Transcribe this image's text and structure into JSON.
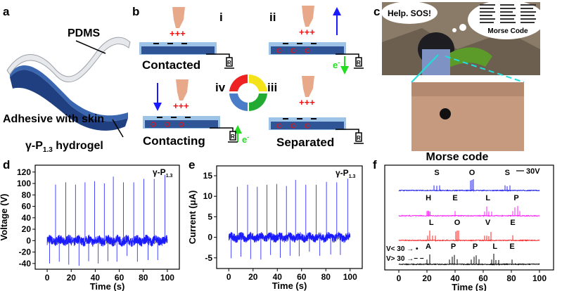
{
  "panels": {
    "a": {
      "label": "a",
      "pdms": "PDMS",
      "adhesive": "Adhesive with skin",
      "hydrogel_main": "γ-P",
      "hydrogel_sub": "1.3",
      "hydrogel_tail": " hydrogel"
    },
    "b": {
      "label": "b",
      "step_i": "i",
      "step_ii": "ii",
      "step_iii": "iii",
      "step_iv": "iv",
      "contacted": "Contacted",
      "contacting": "Contacting",
      "separated": "Separated",
      "charge_plus": "+++",
      "charge_minus": "−",
      "electron": "e",
      "electron_sup": "-",
      "resistor": "R"
    },
    "c": {
      "label": "c",
      "speech": "Help. SOS!",
      "morse_title": "Morse Code"
    },
    "d": {
      "label": "d"
    },
    "e": {
      "label": "e"
    },
    "f": {
      "label": "f",
      "title": "Morse code"
    }
  },
  "colors": {
    "trace": "#1a1aff",
    "sos": "#2222ee",
    "help": "#ff22ff",
    "love": "#ff2222",
    "apple": "#000000",
    "slab": "#2f5597",
    "slab_edge": "#9dc3e6"
  },
  "chart_data": [
    {
      "type": "line",
      "panel": "d",
      "xlabel": "Time (s)",
      "ylabel": "Voltage (V)",
      "annotation_main": "γ-P",
      "annotation_sub": "1.3",
      "xlim": [
        -10,
        110
      ],
      "ylim": [
        -50,
        132
      ],
      "xticks": [
        0,
        20,
        40,
        60,
        80,
        100
      ],
      "yticks": [
        -40,
        -20,
        0,
        20,
        40,
        60,
        80,
        100,
        120
      ],
      "baseline_noise": 8,
      "positive_peaks": {
        "t": [
          7,
          15.5,
          23.5,
          31.5,
          39.5,
          47.5,
          55,
          63.5,
          72,
          80.5,
          89,
          98
        ],
        "v": [
          98,
          102,
          98,
          102,
          104,
          100,
          112,
          102,
          102,
          108,
          108,
          115
        ]
      },
      "negative_peaks": {
        "t": [
          2,
          10,
          18,
          26.5,
          34.5,
          42.5,
          50.5,
          58,
          66.5,
          75,
          84,
          92
        ],
        "v": [
          -40,
          -37,
          -42,
          -44,
          -36,
          -40,
          -36,
          -37,
          -27,
          -37,
          -34,
          -34
        ]
      }
    },
    {
      "type": "line",
      "panel": "e",
      "xlabel": "Time (s)",
      "ylabel": "Current (μA)",
      "annotation_main": "γ-P",
      "annotation_sub": "1.3",
      "xlim": [
        -10,
        110
      ],
      "ylim": [
        -7.6,
        17.4
      ],
      "xticks": [
        0,
        20,
        40,
        60,
        80,
        100
      ],
      "yticks": [
        -5,
        0,
        5,
        10,
        15
      ],
      "baseline_noise": 1,
      "positive_peaks": {
        "t": [
          7,
          15.5,
          23.5,
          31.5,
          39.5,
          47.5,
          55,
          63.5,
          72,
          80.5,
          89,
          98
        ],
        "v": [
          12.3,
          12.8,
          12.3,
          12.8,
          13,
          12.5,
          14,
          12.8,
          12.8,
          13.5,
          13.4,
          14.3
        ]
      },
      "negative_peaks": {
        "t": [
          2,
          10,
          18,
          26.5,
          34.5,
          42.5,
          50.5,
          58,
          66.5,
          75,
          84,
          92
        ],
        "v": [
          -5.1,
          -4.7,
          -5.3,
          -5.4,
          -4.3,
          -5,
          -4.5,
          -4.6,
          -3.5,
          -4.5,
          -4.2,
          -4.3
        ]
      }
    },
    {
      "type": "line",
      "panel": "f",
      "title": "Morse code",
      "xlabel": "Time (s)",
      "xlim": [
        -10,
        110
      ],
      "xticks": [
        0,
        20,
        40,
        60,
        80,
        100
      ],
      "scale_bar": "30V",
      "legend": [
        {
          "label": "V< 30 → •"
        },
        {
          "label": "V> 30 →− −"
        }
      ],
      "series": [
        {
          "word": "SOS",
          "color": "#2222ee",
          "letters": [
            {
              "letter": "S",
              "t": [
                25,
                27,
                29
              ],
              "v": [
                22,
                20,
                22
              ]
            },
            {
              "letter": "O",
              "t": [
                51,
                52,
                53
              ],
              "v": [
                42,
                45,
                48
              ]
            },
            {
              "letter": "S",
              "t": [
                75.5,
                77,
                79
              ],
              "v": [
                22,
                18,
                22
              ]
            }
          ]
        },
        {
          "word": "HELP",
          "color": "#ff22ff",
          "letters": [
            {
              "letter": "H",
              "t": [
                20,
                20.7,
                21.4,
                22.2
              ],
              "v": [
                20,
                22,
                20,
                18
              ]
            },
            {
              "letter": "E",
              "t": [
                40
              ],
              "v": [
                20
              ]
            },
            {
              "letter": "L",
              "t": [
                61,
                62.5,
                64,
                66
              ],
              "v": [
                18,
                40,
                18,
                18
              ]
            },
            {
              "letter": "P",
              "t": [
                81,
                82.5,
                84.5,
                86
              ],
              "v": [
                20,
                36,
                42,
                20
              ]
            }
          ]
        },
        {
          "word": "LOVE",
          "color": "#ff2222",
          "letters": [
            {
              "letter": "L",
              "t": [
                20.5,
                22,
                24,
                26
              ],
              "v": [
                20,
                42,
                20,
                20
              ]
            },
            {
              "letter": "O",
              "t": [
                40.5,
                41.5,
                42.5
              ],
              "v": [
                38,
                42,
                42
              ]
            },
            {
              "letter": "V",
              "t": [
                61,
                62.5,
                64,
                65.5
              ],
              "v": [
                20,
                20,
                18,
                36
              ]
            },
            {
              "letter": "E",
              "t": [
                81
              ],
              "v": [
                22
              ]
            }
          ]
        },
        {
          "word": "APPLE",
          "color": "#000000",
          "letters": [
            {
              "letter": "A",
              "t": [
                20,
                22
              ],
              "v": [
                20,
                42
              ]
            },
            {
              "letter": "P",
              "t": [
                36,
                38,
                39.5,
                41.5
              ],
              "v": [
                20,
                32,
                40,
                22
              ]
            },
            {
              "letter": "P",
              "t": [
                51.5,
                53.5,
                55,
                57
              ],
              "v": [
                20,
                32,
                38,
                22
              ]
            },
            {
              "letter": "L",
              "t": [
                66,
                67.5,
                69,
                71
              ],
              "v": [
                20,
                45,
                18,
                18
              ]
            },
            {
              "letter": "E",
              "t": [
                80.5
              ],
              "v": [
                20
              ]
            }
          ]
        }
      ]
    }
  ]
}
